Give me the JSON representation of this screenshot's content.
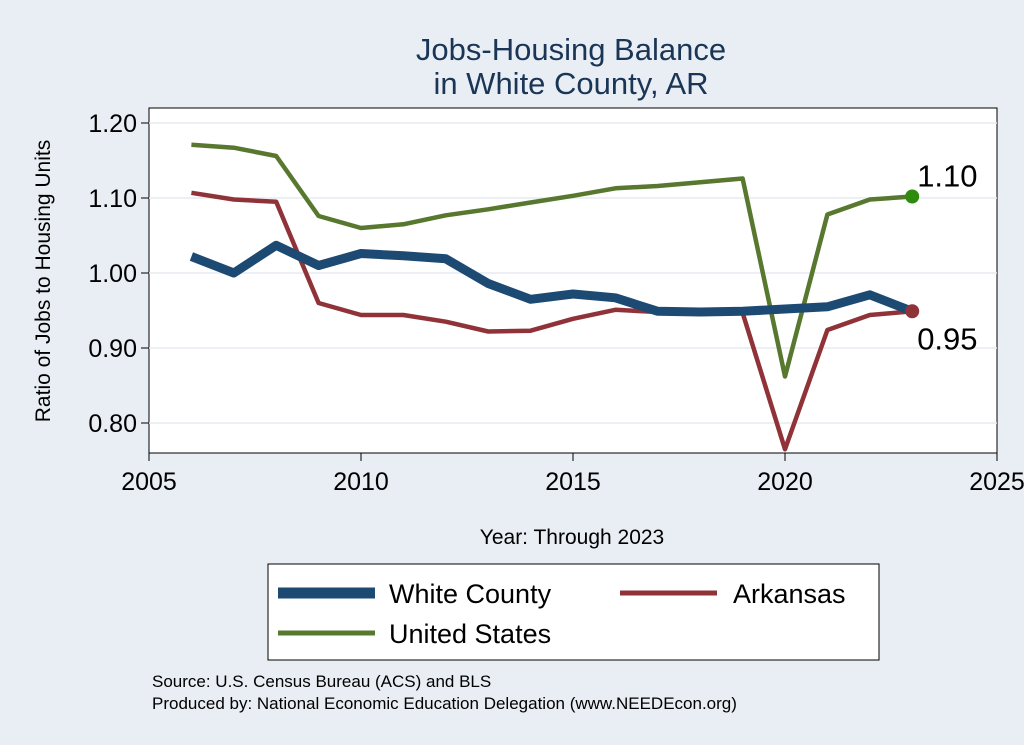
{
  "chart_data": {
    "type": "line",
    "title": [
      "Jobs-Housing Balance",
      "in White County, AR"
    ],
    "xlabel": "Year: Through 2023",
    "ylabel": "Ratio of Jobs to Housing Units",
    "xlim": [
      2005,
      2025
    ],
    "ylim": [
      0.76,
      1.22
    ],
    "xticks": [
      2005,
      2010,
      2015,
      2020,
      2025
    ],
    "xtick_labels": [
      "2005",
      "2010",
      "2015",
      "2020",
      "2025"
    ],
    "yticks": [
      0.8,
      0.9,
      1.0,
      1.1,
      1.2
    ],
    "ytick_labels": [
      "0.80",
      "0.90",
      "1.00",
      "1.10",
      "1.20"
    ],
    "grid": true,
    "legend_position": "bottom",
    "series": [
      {
        "name": "White County",
        "color": "#1d4a72",
        "x": [
          2006,
          2007,
          2008,
          2009,
          2010,
          2011,
          2012,
          2013,
          2014,
          2015,
          2016,
          2017,
          2018,
          2019,
          2020,
          2021,
          2022,
          2023
        ],
        "y": [
          1.022,
          1.0,
          1.037,
          1.01,
          1.026,
          1.023,
          1.019,
          0.986,
          0.965,
          0.972,
          0.967,
          0.949,
          0.948,
          0.949,
          0.952,
          0.955,
          0.971,
          0.949
        ]
      },
      {
        "name": "Arkansas",
        "color": "#8f3339",
        "x": [
          2006,
          2007,
          2008,
          2009,
          2010,
          2011,
          2012,
          2013,
          2014,
          2015,
          2016,
          2017,
          2018,
          2019,
          2020,
          2021,
          2022,
          2023
        ],
        "y": [
          1.107,
          1.098,
          1.095,
          0.96,
          0.944,
          0.944,
          0.935,
          0.922,
          0.923,
          0.939,
          0.951,
          0.948,
          0.947,
          0.947,
          0.765,
          0.924,
          0.944,
          0.949
        ]
      },
      {
        "name": "United States",
        "color": "#57782e",
        "x": [
          2006,
          2007,
          2008,
          2009,
          2010,
          2011,
          2012,
          2013,
          2014,
          2015,
          2016,
          2017,
          2018,
          2019,
          2020,
          2021,
          2022,
          2023
        ],
        "y": [
          1.171,
          1.167,
          1.156,
          1.076,
          1.06,
          1.065,
          1.077,
          1.085,
          1.094,
          1.103,
          1.113,
          1.116,
          1.121,
          1.126,
          0.862,
          1.078,
          1.098,
          1.102
        ]
      }
    ],
    "end_labels": [
      {
        "text": "1.10",
        "series": "United States",
        "x": 2023,
        "y": 1.102,
        "marker_color": "#2e8b10"
      },
      {
        "text": "0.95",
        "series": "Arkansas",
        "x": 2023,
        "y": 0.949,
        "marker_color": "#8f3339"
      }
    ]
  },
  "notes": {
    "source": "Source: U.S. Census Bureau (ACS) and BLS",
    "produced": "Produced by: National Economic Education Delegation (www.NEEDEcon.org)"
  }
}
